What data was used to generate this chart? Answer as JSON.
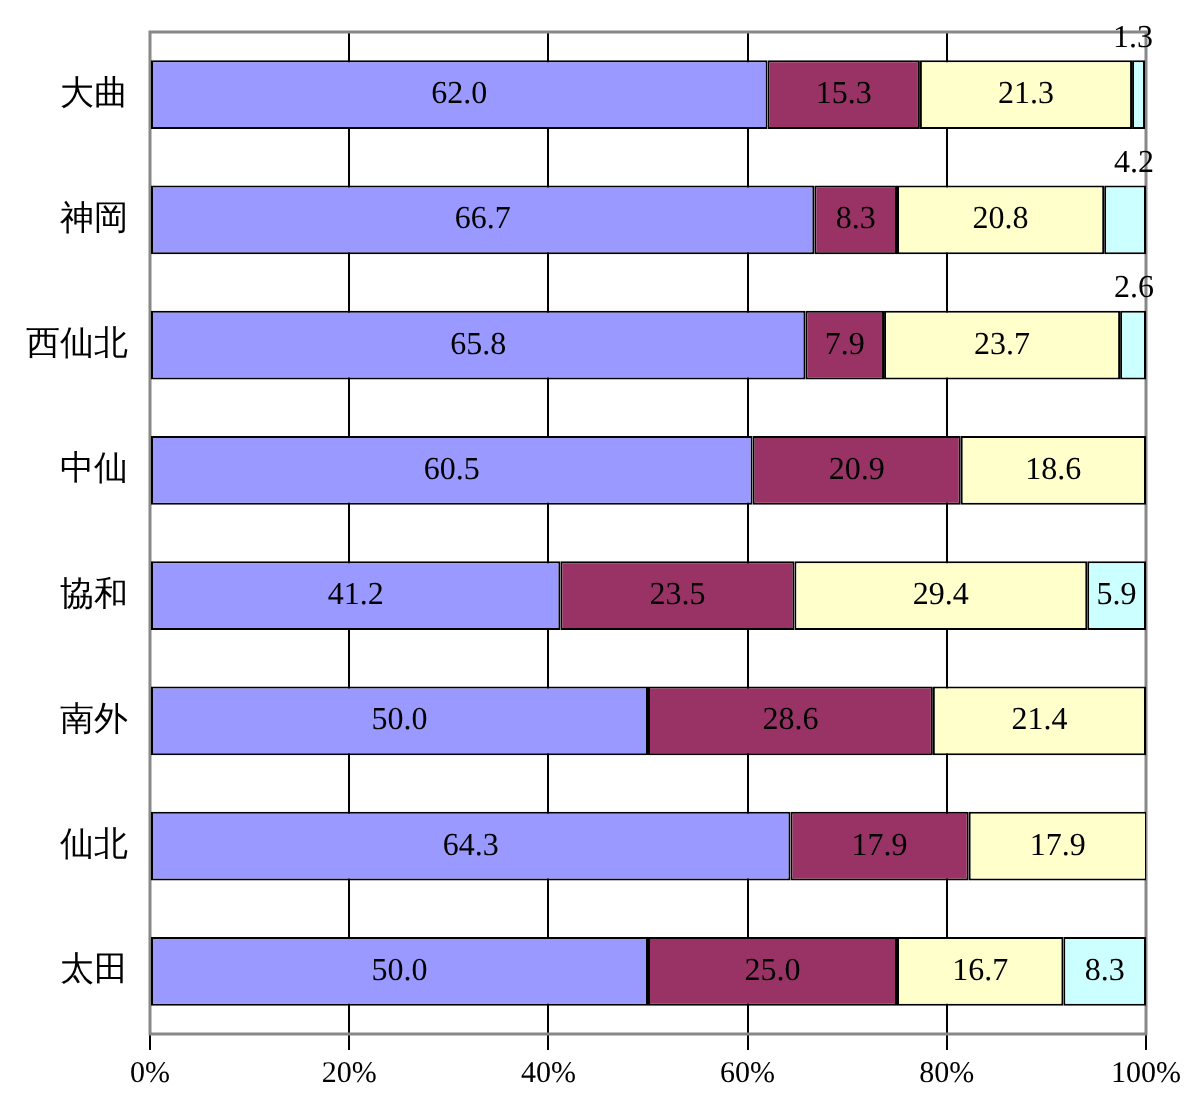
{
  "chart_data": {
    "type": "bar",
    "orientation": "horizontal",
    "stacked": true,
    "categories": [
      "大曲",
      "神岡",
      "西仙北",
      "中仙",
      "協和",
      "南外",
      "仙北",
      "太田"
    ],
    "series": [
      {
        "color": "#9999ff",
        "values": [
          62.0,
          66.7,
          65.8,
          60.5,
          41.2,
          50.0,
          64.3,
          50.0
        ],
        "value_labels": [
          "62.0",
          "66.7",
          "65.8",
          "60.5",
          "41.2",
          "50.0",
          "64.3",
          "50.0"
        ]
      },
      {
        "color": "#993366",
        "values": [
          15.3,
          8.3,
          7.9,
          20.9,
          23.5,
          28.6,
          17.9,
          25.0
        ],
        "value_labels": [
          "15.3",
          "8.3",
          "7.9",
          "20.9",
          "23.5",
          "28.6",
          "17.9",
          "25.0"
        ]
      },
      {
        "color": "#ffffcc",
        "values": [
          21.3,
          20.8,
          23.7,
          18.6,
          29.4,
          21.4,
          17.9,
          16.7
        ],
        "value_labels": [
          "21.3",
          "20.8",
          "23.7",
          "18.6",
          "29.4",
          "21.4",
          "17.9",
          "16.7"
        ]
      },
      {
        "color": "#ccffff",
        "values": [
          1.3,
          4.2,
          2.6,
          null,
          5.9,
          null,
          null,
          8.3
        ],
        "value_labels": [
          "1.3",
          "4.2",
          "2.6",
          null,
          "5.9",
          null,
          null,
          "8.3"
        ]
      }
    ],
    "xlim": [
      0,
      100
    ],
    "xticks": [
      {
        "value": 0,
        "label": "0%"
      },
      {
        "value": 20,
        "label": "20%"
      },
      {
        "value": 40,
        "label": "40%"
      },
      {
        "value": 60,
        "label": "60%"
      },
      {
        "value": 80,
        "label": "80%"
      },
      {
        "value": 100,
        "label": "100%"
      }
    ],
    "grid": "x",
    "legend": false
  }
}
